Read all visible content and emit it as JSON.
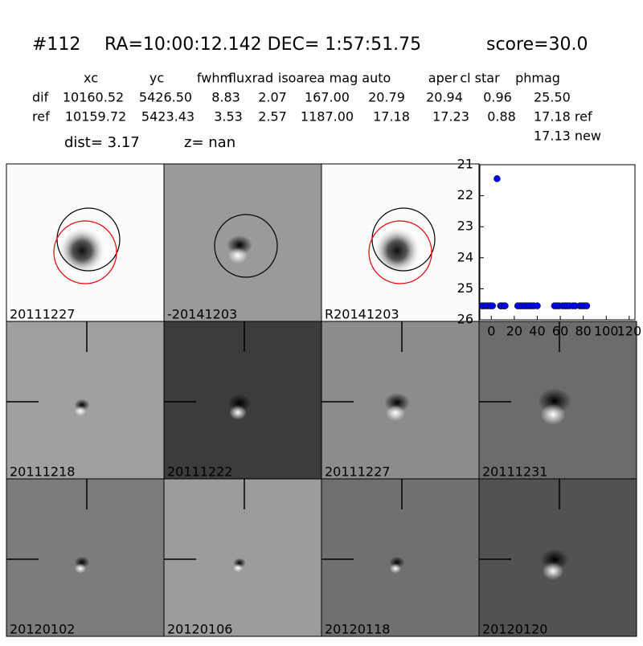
{
  "header": {
    "id": "#112",
    "coords": "RA=10:00:12.142 DEC= 1:57:51.75",
    "score": "score=30.0"
  },
  "table": {
    "columns": [
      "xc",
      "yc",
      "fwhm",
      "fluxrad",
      "isoarea",
      "mag auto",
      "aper",
      "cl star",
      "phmag"
    ],
    "rows": [
      [
        "dif",
        "10160.52",
        "5426.50",
        "8.83",
        "2.07",
        "167.00",
        "20.79",
        "20.94",
        "0.96",
        "25.50"
      ],
      [
        "ref",
        "10159.72",
        "5423.43",
        "3.53",
        "2.57",
        "1187.00",
        "17.18",
        "17.23",
        "0.88",
        "17.18 ref"
      ]
    ],
    "extra": "17.13 new"
  },
  "summary": {
    "dist": "dist=  3.17",
    "z": "z=   nan"
  },
  "stamps": [
    "20111227",
    "-20141203",
    "R20141203",
    "20111218",
    "20111222",
    "20111227",
    "20111231",
    "20120102",
    "20120106",
    "20120118",
    "20120120"
  ],
  "chart_data": {
    "type": "scatter",
    "color": "#0000ff",
    "x": [
      -8,
      -7,
      -5,
      -3,
      -1,
      1,
      5,
      8,
      9,
      11,
      12,
      23,
      25,
      27,
      29,
      31,
      33,
      35,
      37,
      40,
      55,
      57,
      59,
      62,
      64,
      66,
      68,
      71,
      73,
      77,
      79,
      81,
      83
    ],
    "y": [
      25.55,
      25.55,
      25.55,
      25.55,
      25.55,
      25.55,
      21.45,
      25.55,
      25.55,
      25.55,
      25.55,
      25.55,
      25.55,
      25.55,
      25.55,
      25.55,
      25.55,
      25.55,
      25.55,
      25.55,
      25.55,
      25.55,
      25.55,
      25.55,
      25.55,
      25.55,
      25.55,
      25.55,
      25.55,
      25.55,
      25.55,
      25.55,
      25.55
    ],
    "xlim": [
      -10,
      125
    ],
    "ylim": [
      26,
      21
    ],
    "xticks": [
      0,
      20,
      40,
      60,
      80,
      100,
      120
    ],
    "yticks": [
      21,
      22,
      23,
      24,
      25,
      26
    ]
  }
}
